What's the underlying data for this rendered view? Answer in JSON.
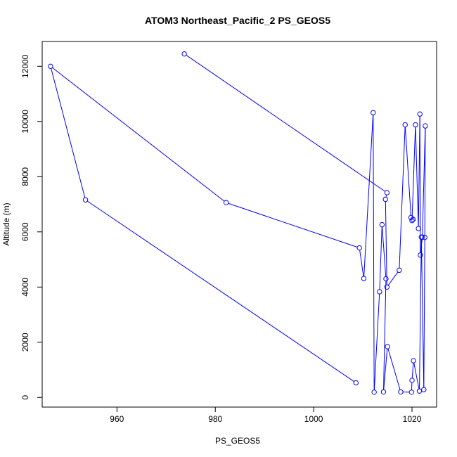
{
  "chart_data": {
    "type": "line",
    "title": "ATOM3 Northeast_Pacific_2 PS_GEOS5",
    "xlabel": "PS_GEOS5",
    "ylabel": "Altitude (m)",
    "x_ticks": [
      960,
      980,
      1000,
      1020
    ],
    "y_ticks": [
      0,
      2000,
      4000,
      6000,
      8000,
      10000,
      12000
    ],
    "xlim": [
      944.8,
      1025.0
    ],
    "ylim": [
      -350,
      12900
    ],
    "grid": false,
    "line_color": "#0000ff",
    "marker": "open-circle",
    "series": [
      {
        "x": [
          973.7,
          1014.9,
          1014.6,
          1014.9,
          1017.4,
          1018.6,
          1019.8,
          1020.2,
          1020.0,
          1020.7,
          1021.3,
          1021.6,
          1021.7,
          1022.1,
          1022.7,
          1022.6,
          1022.4,
          1021.9,
          1021.5,
          1020.3,
          1020.0,
          1019.9,
          1017.7,
          1015.0,
          1014.2,
          1014.7,
          1013.9,
          1013.4,
          1012.3,
          1012.1,
          1010.2,
          1009.3,
          982.2,
          946.5,
          953.6,
          1008.6
        ],
        "y": [
          12450,
          7420,
          7180,
          4000,
          4610,
          9880,
          6520,
          6450,
          6410,
          9880,
          6120,
          10270,
          5160,
          5810,
          9840,
          5800,
          280,
          5810,
          230,
          1330,
          620,
          190,
          200,
          1840,
          200,
          4300,
          6260,
          3830,
          190,
          10320,
          4310,
          5420,
          7060,
          12000,
          7160,
          530
        ]
      }
    ]
  }
}
